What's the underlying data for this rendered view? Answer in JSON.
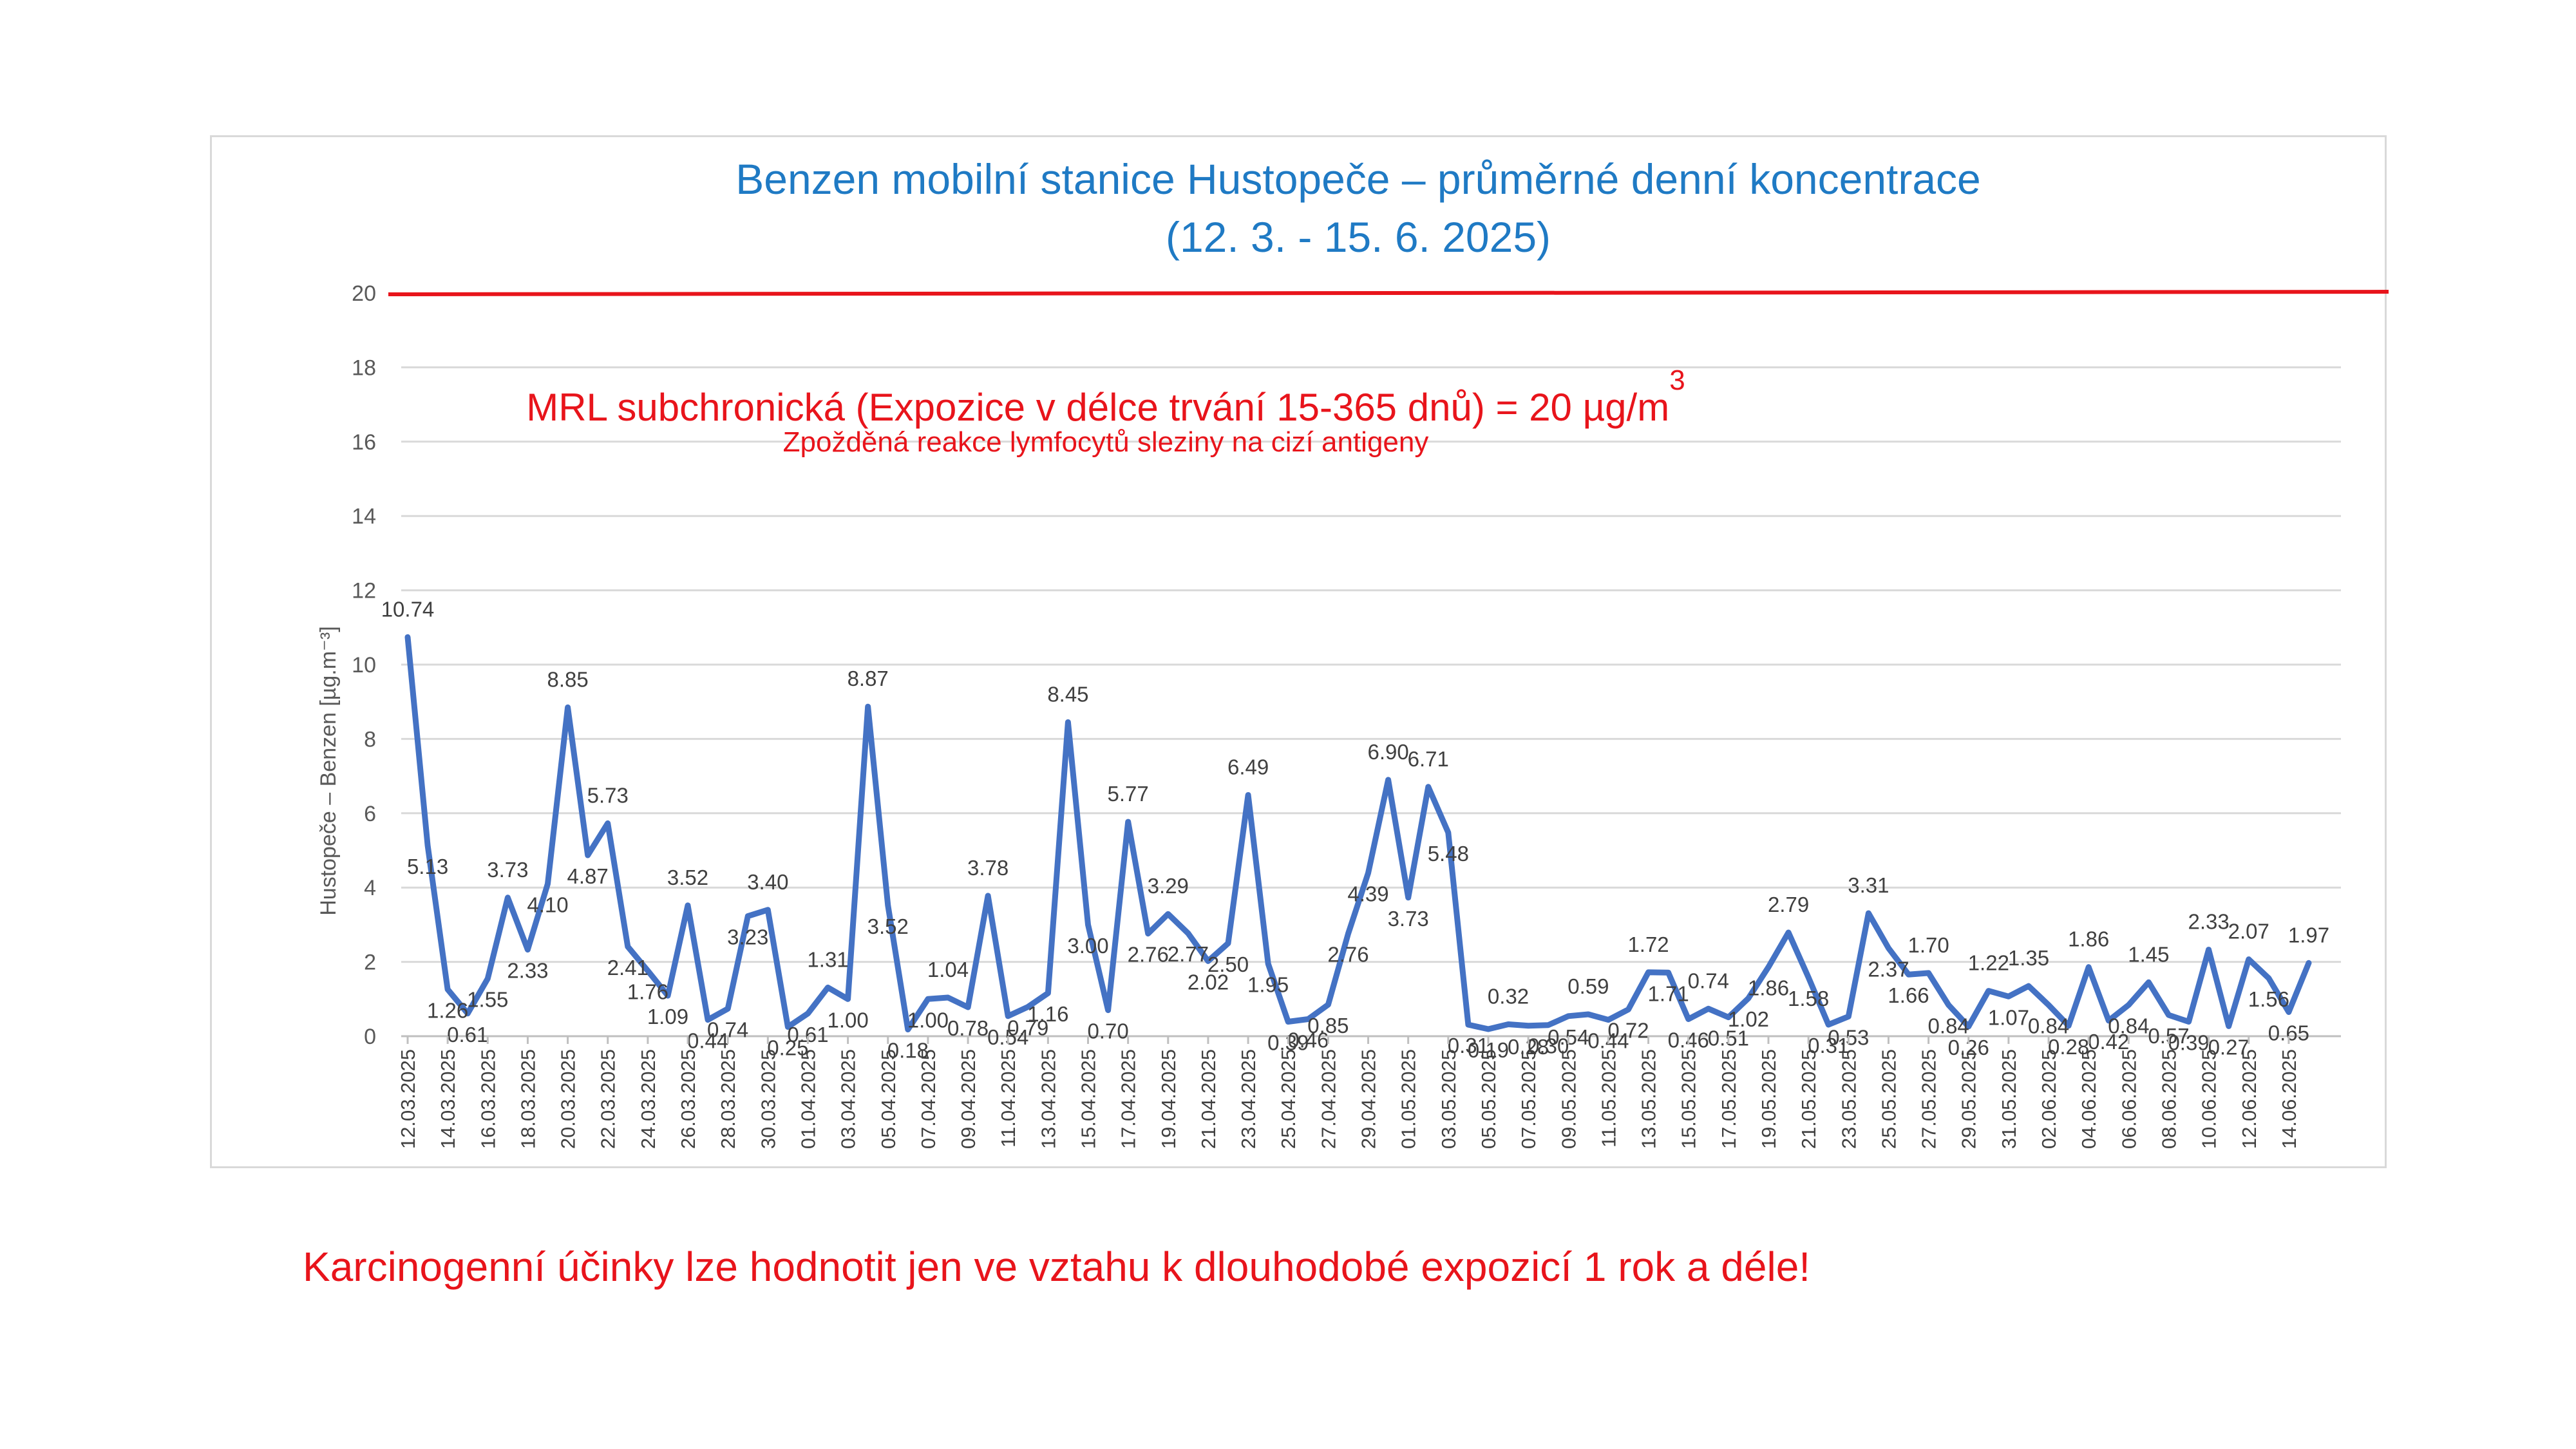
{
  "chart_data": {
    "type": "line",
    "title": [
      "Benzen mobilní stanice Hustopeče – průměrné denní koncentrace",
      "(12. 3. - 15. 6. 2025)"
    ],
    "ylabel": "Hustopeče – Benzen [µg.m⁻³]",
    "ylim": [
      0,
      20
    ],
    "yticks": [
      "0",
      "2",
      "4",
      "6",
      "8",
      "10",
      "12",
      "14",
      "16",
      "18",
      "20"
    ],
    "grid": true,
    "x_tick_labels": [
      "12.03.2025",
      "14.03.2025",
      "16.03.2025",
      "18.03.2025",
      "20.03.2025",
      "22.03.2025",
      "24.03.2025",
      "26.03.2025",
      "28.03.2025",
      "30.03.2025",
      "01.04.2025",
      "03.04.2025",
      "05.04.2025",
      "07.04.2025",
      "09.04.2025",
      "11.04.2025",
      "13.04.2025",
      "15.04.2025",
      "17.04.2025",
      "19.04.2025",
      "21.04.2025",
      "23.04.2025",
      "25.04.2025",
      "27.04.2025",
      "29.04.2025",
      "01.05.2025",
      "03.05.2025",
      "05.05.2025",
      "07.05.2025",
      "09.05.2025",
      "11.05.2025",
      "13.05.2025",
      "15.05.2025",
      "17.05.2025",
      "19.05.2025",
      "21.05.2025",
      "23.05.2025",
      "25.05.2025",
      "27.05.2025",
      "29.05.2025",
      "31.05.2025",
      "02.06.2025",
      "04.06.2025",
      "06.06.2025",
      "08.06.2025",
      "10.06.2025",
      "12.06.2025",
      "14.06.2025"
    ],
    "series": [
      {
        "color": "#4472c4",
        "values": [
          10.74,
          5.13,
          1.26,
          0.61,
          1.55,
          3.73,
          2.33,
          4.1,
          8.85,
          4.87,
          5.73,
          2.41,
          1.76,
          1.09,
          3.52,
          0.44,
          0.74,
          3.23,
          3.4,
          0.25,
          0.61,
          1.31,
          1.0,
          8.87,
          3.52,
          0.18,
          1.0,
          1.04,
          0.78,
          3.78,
          0.54,
          0.79,
          1.16,
          8.45,
          3.0,
          0.7,
          5.77,
          2.76,
          3.29,
          2.77,
          2.02,
          2.5,
          6.49,
          1.95,
          0.39,
          0.46,
          0.85,
          2.76,
          4.39,
          6.9,
          3.73,
          6.71,
          5.48,
          0.31,
          0.19,
          0.32,
          0.28,
          0.3,
          0.54,
          0.59,
          0.44,
          0.72,
          1.72,
          1.71,
          0.46,
          0.74,
          0.51,
          1.02,
          1.86,
          2.79,
          1.58,
          0.31,
          0.53,
          3.31,
          2.37,
          1.66,
          1.7,
          0.84,
          0.26,
          1.22,
          1.07,
          1.35,
          0.84,
          0.28,
          1.86,
          0.42,
          0.84,
          1.45,
          0.57,
          0.39,
          2.33,
          0.27,
          2.07,
          1.56,
          0.65,
          1.97
        ],
        "labels": [
          "10.74",
          "5.13",
          "1.26",
          "0.61",
          "1.55",
          "3.73",
          "2.33",
          "4.10",
          "8.85",
          "4.87",
          "5.73",
          "2.41",
          "1.76",
          "1.09",
          "3.52",
          "0.44",
          "0.74",
          "3.23",
          "3.40",
          "0.25",
          "0.61",
          "1.31",
          "1.00",
          "8.87",
          "3.52",
          "0.18",
          "1.00",
          "1.04",
          "0.78",
          "3.78",
          "0.54",
          "0.79",
          "1.16",
          "8.45",
          "3.00",
          "0.70",
          "5.77",
          "2.76",
          "3.29",
          "2.77",
          "2.02",
          "2.50",
          "6.49",
          "1.95",
          "0.39",
          "0.46",
          "0.85",
          "2.76",
          "4.39",
          "6.90",
          "3.73",
          "6.71",
          "5.48",
          "0.31",
          "0.19",
          "0.32",
          "0.28",
          "0.30",
          "0.54",
          "0.59",
          "0.44",
          "0.72",
          "1.72",
          "1.71",
          "0.46",
          "0.74",
          "0.51",
          "1.02",
          "1.86",
          "2.79",
          "1.58",
          "0.31",
          "0.53",
          "3.31",
          "2.37",
          "1.66",
          "1.70",
          "0.84",
          "0.26",
          "1.22",
          "1.07",
          "1.35",
          "0.84",
          "0.28",
          "1.86",
          "0.42",
          "0.84",
          "1.45",
          "0.57",
          "0.39",
          "2.33",
          "0.27",
          "2.07",
          "1.56",
          "0.65",
          "1.97"
        ]
      }
    ],
    "reference_line": {
      "value": 20,
      "color": "#e8141b",
      "label": "MRL subchronická (Expozice v délce trvání 15-365 dnů) = 20 µg/m",
      "label_superscript": "3",
      "sublabel": "Zpožděná reakce lymfocytů sleziny na cizí antigeny"
    }
  },
  "footnote": "Karcinogenní účinky lze hodnotit jen ve vztahu k dlouhodobé expozicí 1 rok a déle!"
}
